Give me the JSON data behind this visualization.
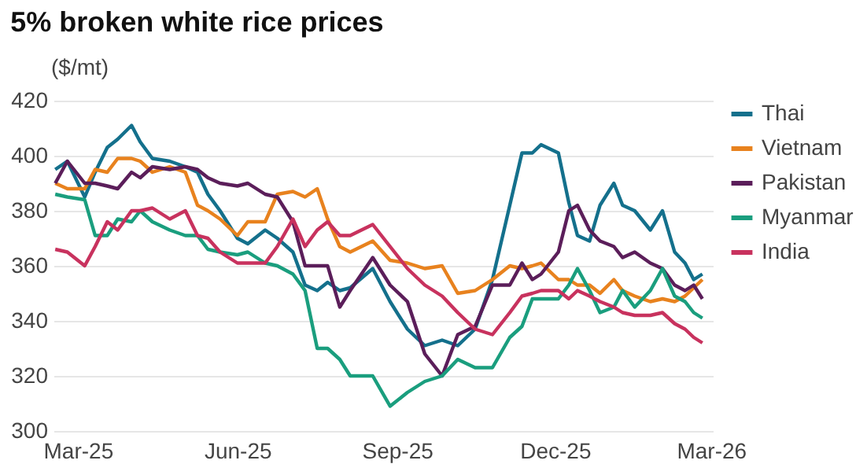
{
  "chart_data": {
    "type": "line",
    "title": "5% broken white rice prices",
    "ylabel": "($/mt)",
    "x": [
      "2025-02-16",
      "2025-02-23",
      "2025-03-05",
      "2025-03-11",
      "2025-03-18",
      "2025-03-24",
      "2025-04-01",
      "2025-04-06",
      "2025-04-13",
      "2025-04-23",
      "2025-05-02",
      "2025-05-09",
      "2025-05-15",
      "2025-05-22",
      "2025-06-01",
      "2025-06-07",
      "2025-06-17",
      "2025-06-24",
      "2025-07-03",
      "2025-07-10",
      "2025-07-17",
      "2025-07-23",
      "2025-07-30",
      "2025-08-05",
      "2025-08-18",
      "2025-08-28",
      "2025-09-07",
      "2025-09-17",
      "2025-09-27",
      "2025-10-06",
      "2025-10-16",
      "2025-10-26",
      "2025-11-05",
      "2025-11-12",
      "2025-11-18",
      "2025-11-23",
      "2025-12-03",
      "2025-12-09",
      "2025-12-14",
      "2025-12-21",
      "2025-12-27",
      "2026-01-04",
      "2026-01-09",
      "2026-01-16",
      "2026-01-25",
      "2026-02-01",
      "2026-02-08",
      "2026-02-14",
      "2026-02-19",
      "2026-02-24"
    ],
    "series": [
      {
        "name": "Thai",
        "color": "#14708c",
        "values": [
          395,
          398,
          385,
          394,
          403,
          406,
          411,
          405,
          399,
          398,
          396,
          394,
          386,
          380,
          370,
          368,
          373,
          370,
          365,
          353,
          351,
          354,
          351,
          352,
          359,
          347,
          337,
          331,
          333,
          331,
          337,
          355,
          382,
          401,
          401,
          404,
          401,
          383,
          371,
          369,
          382,
          390,
          382,
          380,
          373,
          380,
          365,
          361,
          355,
          357
        ]
      },
      {
        "name": "Vietnam",
        "color": "#e8821e",
        "values": [
          390,
          388,
          388,
          395,
          394,
          399,
          399,
          398,
          394,
          396,
          394,
          382,
          380,
          377,
          371,
          376,
          376,
          386,
          387,
          385,
          388,
          377,
          367,
          365,
          369,
          362,
          361,
          359,
          360,
          350,
          351,
          355,
          360,
          359,
          360,
          361,
          355,
          355,
          353,
          353,
          350,
          355,
          351,
          349,
          347,
          348,
          347,
          349,
          352,
          355
        ]
      },
      {
        "name": "Pakistan",
        "color": "#5b1e5a",
        "values": [
          390,
          398,
          390,
          390,
          389,
          388,
          394,
          392,
          396,
          395,
          396,
          395,
          392,
          390,
          389,
          390,
          386,
          385,
          376,
          360,
          360,
          360,
          345,
          351,
          363,
          353,
          347,
          328,
          320,
          335,
          338,
          353,
          353,
          361,
          355,
          357,
          365,
          380,
          382,
          373,
          369,
          367,
          363,
          365,
          361,
          359,
          353,
          351,
          353,
          348
        ]
      },
      {
        "name": "Myanmar",
        "color": "#1a9e7e",
        "values": [
          386,
          385,
          384,
          371,
          371,
          377,
          376,
          380,
          376,
          373,
          371,
          371,
          366,
          365,
          364,
          365,
          361,
          360,
          357,
          351,
          330,
          330,
          326,
          320,
          320,
          309,
          314,
          318,
          320,
          326,
          323,
          323,
          334,
          338,
          348,
          348,
          348,
          353,
          359,
          351,
          343,
          345,
          351,
          345,
          351,
          359,
          349,
          347,
          343,
          341
        ]
      },
      {
        "name": "India",
        "color": "#c8325e",
        "values": [
          366,
          365,
          360,
          367,
          376,
          373,
          380,
          380,
          381,
          377,
          380,
          371,
          370,
          365,
          361,
          361,
          361,
          367,
          377,
          367,
          373,
          376,
          371,
          371,
          375,
          367,
          359,
          353,
          349,
          343,
          337,
          335,
          343,
          349,
          350,
          351,
          351,
          348,
          351,
          349,
          347,
          345,
          343,
          342,
          342,
          343,
          339,
          337,
          334,
          332
        ]
      }
    ],
    "xlim": [
      "2025-02-15",
      "2026-03-02"
    ],
    "xticks": [
      {
        "value": "2025-03-01",
        "label": "Mar-25"
      },
      {
        "value": "2025-06-01",
        "label": "Jun-25"
      },
      {
        "value": "2025-09-01",
        "label": "Sep-25"
      },
      {
        "value": "2025-12-01",
        "label": "Dec-25"
      },
      {
        "value": "2026-03-01",
        "label": "Mar-26"
      }
    ],
    "ylim": [
      300,
      420
    ],
    "yticks": [
      300,
      320,
      340,
      360,
      380,
      400,
      420
    ],
    "grid": "y",
    "legend": "right",
    "line_style": "solid",
    "marker": "none"
  }
}
